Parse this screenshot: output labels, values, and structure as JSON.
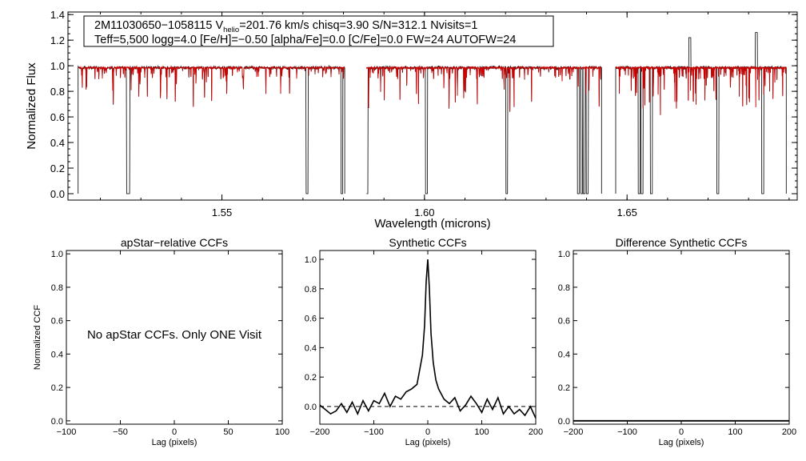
{
  "colors": {
    "observed": "#000000",
    "model": "#cc0000",
    "frame": "#000000"
  },
  "chart_data": [
    {
      "type": "line",
      "id": "spectrum",
      "ylabel": "Normalized Flux",
      "xlabel": "Wavelength (microns)",
      "xlim": [
        1.512,
        1.692
      ],
      "ylim": [
        -0.05,
        1.42
      ],
      "xticks": [
        1.55,
        1.6,
        1.65
      ],
      "xtick_labels": [
        "1.55",
        "1.60",
        "1.65"
      ],
      "yticks": [
        0.0,
        0.2,
        0.4,
        0.6,
        0.8,
        1.0,
        1.2,
        1.4
      ],
      "ytick_labels": [
        "0.0",
        "0.2",
        "0.4",
        "0.6",
        "0.8",
        "1.0",
        "1.2",
        "1.4"
      ],
      "chips": [
        [
          1.5145,
          1.5803
        ],
        [
          1.5857,
          1.6437
        ],
        [
          1.6472,
          1.6893
        ]
      ],
      "deep_lines": [
        1.5267,
        1.527,
        1.571,
        1.5796,
        1.5858,
        1.6005,
        1.6203,
        1.638,
        1.6388,
        1.6394,
        1.6402,
        1.653,
        1.6537,
        1.656,
        1.6724,
        1.6835
      ],
      "emission_lines": [
        1.6655,
        1.6819
      ],
      "info": {
        "star": "2M11030650−1058115",
        "v_prefix": "V",
        "v_sub": "helio",
        "v_rest": "=201.76 km/s",
        "rest": "chisq=3.90  S/N=312.1  Nvisits=1",
        "line2": "Teff=5,500 logg=4.0 [Fe/H]=−0.50 [alpha/Fe]=0.0 [C/Fe]=0.0 FW=24 AUTOFW=24"
      },
      "series": [
        {
          "values_description": ""
        }
      ]
    },
    {
      "type": "line",
      "id": "apstar-ccf",
      "title": "apStar−relative CCFs",
      "xlabel": "Lag (pixels)",
      "ylabel": "Normalized CCF",
      "xlim": [
        -100,
        100
      ],
      "ylim": [
        -0.02,
        1.02
      ],
      "xticks": [
        -100,
        -50,
        0,
        50,
        100
      ],
      "xtick_labels": [
        "−100",
        "−50",
        "0",
        "50",
        "100"
      ],
      "yticks": [
        0.0,
        0.2,
        0.4,
        0.6,
        0.8,
        1.0
      ],
      "ytick_labels": [
        "0.0",
        "0.2",
        "0.4",
        "0.6",
        "0.8",
        "1.0"
      ],
      "note": "No apStar CCFs.  Only ONE Visit"
    },
    {
      "type": "line",
      "id": "synthetic-ccf",
      "title": "Synthetic CCFs",
      "xlabel": "Lag (pixels)",
      "xlim": [
        -200,
        200
      ],
      "ylim": [
        -0.12,
        1.06
      ],
      "xticks": [
        -200,
        -100,
        0,
        100,
        200
      ],
      "xtick_labels": [
        "−200",
        "−100",
        "0",
        "100",
        "200"
      ],
      "yticks": [
        0.0,
        0.2,
        0.4,
        0.6,
        0.8,
        1.0
      ],
      "ytick_labels": [
        "0.0",
        "0.2",
        "0.4",
        "0.6",
        "0.8",
        "1.0"
      ],
      "dashed_level": 0.0,
      "x": [
        -200,
        -190,
        -180,
        -170,
        -160,
        -150,
        -140,
        -130,
        -120,
        -110,
        -100,
        -90,
        -80,
        -70,
        -60,
        -50,
        -40,
        -30,
        -20,
        -15,
        -10,
        -6,
        -3,
        0,
        3,
        6,
        10,
        15,
        20,
        30,
        40,
        50,
        60,
        70,
        80,
        90,
        100,
        110,
        120,
        130,
        140,
        150,
        160,
        170,
        180,
        190,
        200
      ],
      "y": [
        0.01,
        -0.02,
        -0.05,
        -0.03,
        0.02,
        -0.04,
        0.03,
        -0.05,
        0.04,
        -0.03,
        0.04,
        0.02,
        0.09,
        0.0,
        0.07,
        0.05,
        0.1,
        0.12,
        0.15,
        0.25,
        0.35,
        0.55,
        0.85,
        1.0,
        0.8,
        0.5,
        0.3,
        0.18,
        0.12,
        0.05,
        0.02,
        0.06,
        -0.03,
        0.01,
        0.07,
        0.02,
        -0.04,
        0.05,
        -0.02,
        0.06,
        -0.05,
        0.0,
        -0.05,
        -0.02,
        -0.06,
        0.0,
        -0.08
      ]
    },
    {
      "type": "line",
      "id": "difference-ccf",
      "title": "Difference Synthetic CCFs",
      "xlabel": "Lag (pixels)",
      "xlim": [
        -200,
        200
      ],
      "ylim": [
        -0.02,
        1.02
      ],
      "xticks": [
        -200,
        -100,
        0,
        100,
        200
      ],
      "xtick_labels": [
        "−200",
        "−100",
        "0",
        "100",
        "200"
      ],
      "yticks": [
        0.0,
        0.2,
        0.4,
        0.6,
        0.8,
        1.0
      ],
      "ytick_labels": [
        "0.0",
        "0.2",
        "0.4",
        "0.6",
        "0.8",
        "1.0"
      ],
      "constant_value": 0.0
    }
  ]
}
